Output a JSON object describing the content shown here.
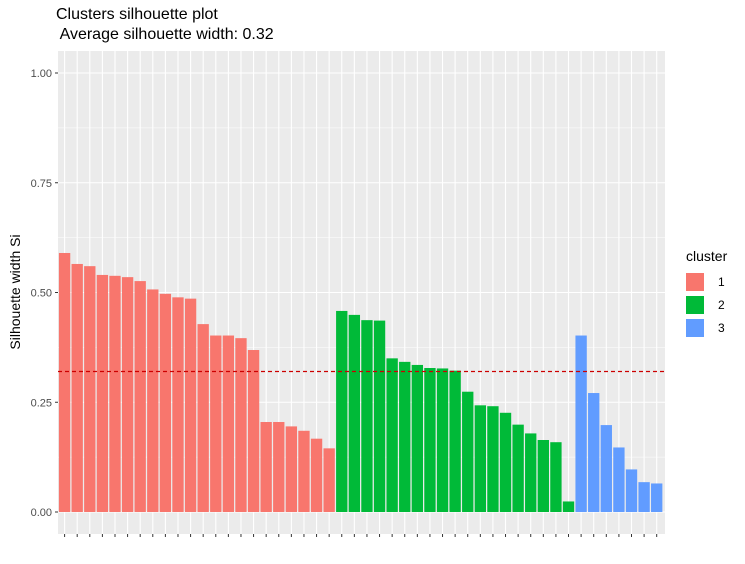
{
  "chart_data": {
    "type": "bar",
    "title": "Clusters silhouette plot",
    "subtitle": " Average silhouette width: 0.32",
    "xlabel": "",
    "ylabel": "Silhouette width Si",
    "ylim": [
      0,
      1.0
    ],
    "yticks": [
      "0.00",
      "0.25",
      "0.50",
      "0.75",
      "1.00"
    ],
    "average_line": 0.32,
    "grid": true,
    "legend": {
      "title": "cluster",
      "position": "right",
      "labels": [
        "1",
        "2",
        "3"
      ]
    },
    "colors": {
      "1": "#F8766D",
      "2": "#00BA38",
      "3": "#619CFF",
      "reference_line": "#CC0000"
    },
    "series": [
      {
        "name": "1",
        "values": [
          0.59,
          0.565,
          0.56,
          0.54,
          0.538,
          0.535,
          0.526,
          0.507,
          0.497,
          0.489,
          0.486,
          0.428,
          0.402,
          0.402,
          0.396,
          0.369,
          0.205,
          0.205,
          0.195,
          0.185,
          0.167,
          0.145
        ]
      },
      {
        "name": "2",
        "values": [
          0.458,
          0.449,
          0.437,
          0.436,
          0.35,
          0.342,
          0.335,
          0.328,
          0.327,
          0.322,
          0.274,
          0.243,
          0.241,
          0.226,
          0.199,
          0.179,
          0.164,
          0.159,
          0.024
        ]
      },
      {
        "name": "3",
        "values": [
          0.402,
          0.271,
          0.198,
          0.147,
          0.097,
          0.068,
          0.065
        ]
      }
    ]
  }
}
